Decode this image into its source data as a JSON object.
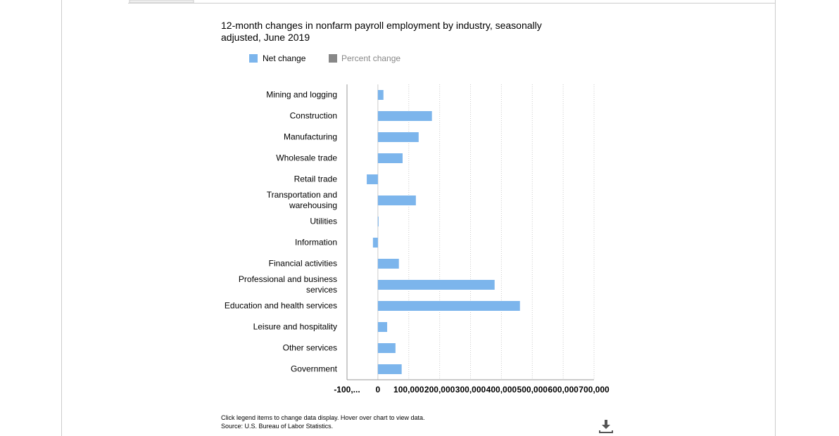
{
  "chart_data": {
    "type": "bar",
    "orientation": "horizontal",
    "title": "12-month changes in nonfarm payroll employment by industry, seasonally adjusted, June 2019",
    "categories": [
      "Mining and logging",
      "Construction",
      "Manufacturing",
      "Wholesale trade",
      "Retail trade",
      "Transportation and warehousing",
      "Utilities",
      "Information",
      "Financial activities",
      "Professional and business services",
      "Education and health services",
      "Leisure and hospitality",
      "Other services",
      "Government"
    ],
    "series": [
      {
        "name": "Net change",
        "color": "#7cb5ec",
        "values": [
          18000,
          175000,
          132000,
          80000,
          -36000,
          123000,
          1000,
          -16000,
          68000,
          378000,
          460000,
          30000,
          57000,
          77000
        ]
      }
    ],
    "inactive_legend": {
      "name": "Percent change",
      "color": "#888888"
    },
    "xlim": [
      -100000,
      700000
    ],
    "xticks": [
      {
        "value": -100000,
        "label": "-100,..."
      },
      0,
      {
        "value": 100000,
        "label": "100,000"
      },
      {
        "value": 200000,
        "label": "200,000"
      },
      {
        "value": 300000,
        "label": "300,000"
      },
      {
        "value": 400000,
        "label": "400,000"
      },
      {
        "value": 500000,
        "label": "500,000"
      },
      {
        "value": 600000,
        "label": "600,000"
      },
      {
        "value": 700000,
        "label": "700,000"
      }
    ],
    "grid": true,
    "notes": [
      "Click legend items to change data display. Hover over chart to view data.",
      "Source: U.S. Bureau of Labor Statistics."
    ]
  }
}
